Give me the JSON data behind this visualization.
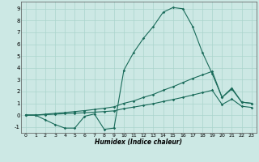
{
  "xlabel": "Humidex (Indice chaleur)",
  "background_color": "#cce8e4",
  "grid_color": "#aad4cc",
  "line_color": "#1a6b5a",
  "xlim": [
    -0.5,
    23.5
  ],
  "ylim": [
    -1.5,
    9.6
  ],
  "xticks": [
    0,
    1,
    2,
    3,
    4,
    5,
    6,
    7,
    8,
    9,
    10,
    11,
    12,
    13,
    14,
    15,
    16,
    17,
    18,
    19,
    20,
    21,
    22,
    23
  ],
  "yticks": [
    -1,
    0,
    1,
    2,
    3,
    4,
    5,
    6,
    7,
    8,
    9
  ],
  "series1_x": [
    0,
    1,
    2,
    3,
    4,
    5,
    6,
    7,
    8,
    9,
    10,
    11,
    12,
    13,
    14,
    15,
    16,
    17,
    18,
    19,
    20,
    21,
    22,
    23
  ],
  "series1_y": [
    0.0,
    0.0,
    -0.4,
    -0.8,
    -1.1,
    -1.1,
    -0.1,
    0.1,
    -1.2,
    -1.1,
    3.8,
    5.3,
    6.5,
    7.5,
    8.7,
    9.1,
    9.0,
    7.5,
    5.3,
    3.5,
    1.5,
    2.2,
    1.1,
    1.0
  ],
  "series2_x": [
    0,
    1,
    2,
    3,
    4,
    5,
    6,
    7,
    8,
    9,
    10,
    11,
    12,
    13,
    14,
    15,
    16,
    17,
    18,
    19,
    20,
    21,
    22,
    23
  ],
  "series2_y": [
    0.0,
    0.0,
    0.08,
    0.15,
    0.22,
    0.3,
    0.38,
    0.48,
    0.58,
    0.7,
    1.0,
    1.2,
    1.5,
    1.75,
    2.1,
    2.4,
    2.75,
    3.1,
    3.4,
    3.7,
    1.5,
    2.3,
    1.1,
    1.0
  ],
  "series3_x": [
    0,
    1,
    2,
    3,
    4,
    5,
    6,
    7,
    8,
    9,
    10,
    11,
    12,
    13,
    14,
    15,
    16,
    17,
    18,
    19,
    20,
    21,
    22,
    23
  ],
  "series3_y": [
    0.0,
    0.0,
    0.04,
    0.08,
    0.12,
    0.16,
    0.2,
    0.25,
    0.3,
    0.36,
    0.55,
    0.68,
    0.82,
    0.97,
    1.15,
    1.32,
    1.5,
    1.7,
    1.9,
    2.1,
    0.9,
    1.35,
    0.75,
    0.65
  ]
}
